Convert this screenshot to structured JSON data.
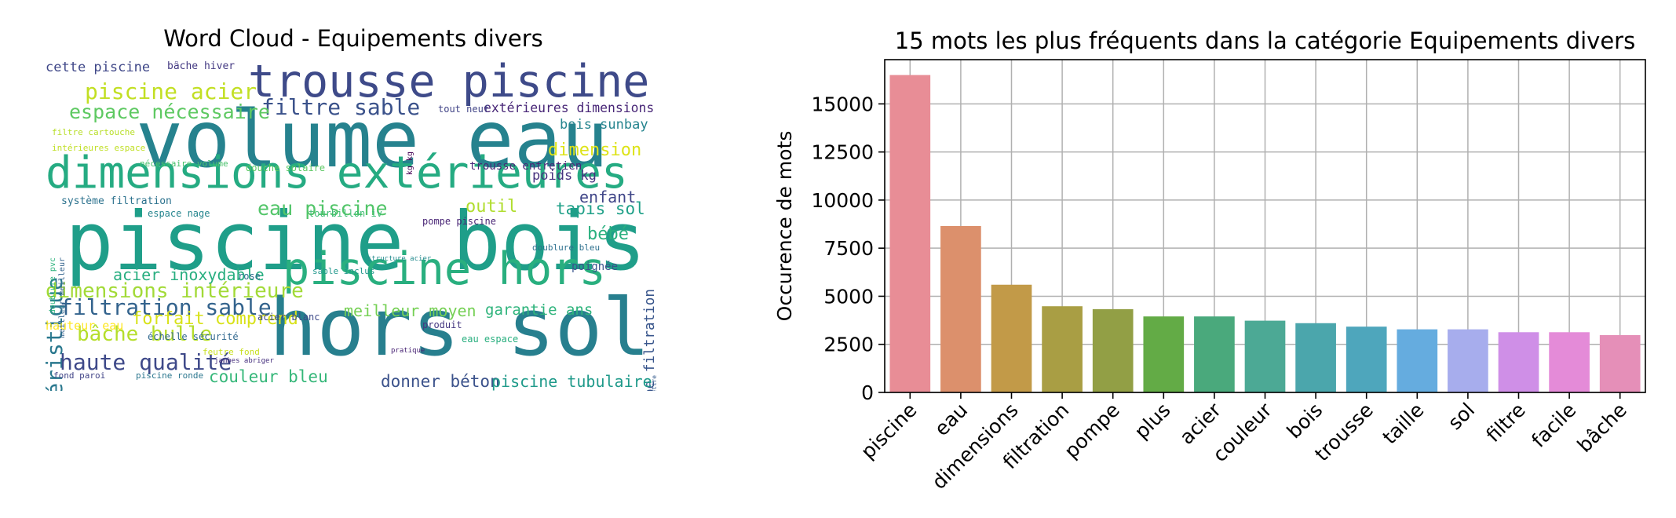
{
  "chart_data": [
    {
      "type": "wordcloud",
      "title": "Word Cloud - Equipements divers",
      "words": [
        {
          "text": "hors sol",
          "color": "#277f8e"
        },
        {
          "text": "piscine bois",
          "color": "#1f9e89"
        },
        {
          "text": "volume eau",
          "color": "#26828e"
        },
        {
          "text": "trousse piscine",
          "color": "#3e4a89"
        },
        {
          "text": "dimensions extérieures",
          "color": "#25ab82"
        },
        {
          "text": "piscine hors",
          "color": "#29af7f"
        },
        {
          "text": "filtre sable",
          "color": "#3b528b"
        },
        {
          "text": "caractéristique",
          "color": "#2a788e"
        },
        {
          "text": "dimensions intérieure",
          "color": "#a2da37"
        },
        {
          "text": "filtration sable",
          "color": "#33638d"
        },
        {
          "text": "haute qualité",
          "color": "#3e4989"
        },
        {
          "text": "bâche bulle",
          "color": "#b5de2b"
        },
        {
          "text": "pompe filtration",
          "color": "#39568c"
        },
        {
          "text": "piscine acier",
          "color": "#c2df23"
        },
        {
          "text": "espace nécessaire",
          "color": "#5ec962"
        },
        {
          "text": "eau piscine",
          "color": "#52c569"
        },
        {
          "text": "extérieures dimensions",
          "color": "#482677"
        },
        {
          "text": "acier inoxydable",
          "color": "#28ae80"
        },
        {
          "text": "forfait comprend",
          "color": "#d8e219"
        },
        {
          "text": "meilleur moyen",
          "color": "#75d054"
        },
        {
          "text": "garantie ans",
          "color": "#2fb47c"
        },
        {
          "text": "donner béton",
          "color": "#3b528b"
        },
        {
          "text": "piscine tubulaire",
          "color": "#1f9a8a"
        },
        {
          "text": "couleur bleu",
          "color": "#35b779"
        },
        {
          "text": "tapis sol",
          "color": "#1fa088"
        },
        {
          "text": "bébé",
          "color": "#2ab07f"
        },
        {
          "text": "enfant",
          "color": "#404688"
        },
        {
          "text": "outil",
          "color": "#b0dd2f"
        },
        {
          "text": "dimension",
          "color": "#dde318"
        },
        {
          "text": "bois sunbay",
          "color": "#25848e"
        },
        {
          "text": "poids kg",
          "color": "#46337f"
        },
        {
          "text": "cette piscine",
          "color": "#3f4788"
        },
        {
          "text": "longueur largeur",
          "color": "#dde318"
        },
        {
          "text": "hauteur eau",
          "color": "#fde725"
        },
        {
          "text": "trousse entretien",
          "color": "#482878"
        },
        {
          "text": "système filtration",
          "color": "#2c728e"
        },
        {
          "text": "poignée",
          "color": "#3a548c"
        },
        {
          "text": "bâche hiver",
          "color": "#443a83"
        },
        {
          "text": "douche solaire",
          "color": "#5cc863"
        },
        {
          "text": "tout neuf",
          "color": "#414487"
        },
        {
          "text": "espace nage",
          "color": "#25858e"
        },
        {
          "text": "pompe piscine",
          "color": "#482475"
        },
        {
          "text": "tourbillon iv",
          "color": "#3dbc74"
        },
        {
          "text": "intérieures espace",
          "color": "#c0df25"
        },
        {
          "text": "filtre cartouche",
          "color": "#b8de29"
        },
        {
          "text": "nécessaire volume",
          "color": "#4ac16d"
        },
        {
          "text": "doublure bleu",
          "color": "#2d708e"
        },
        {
          "text": "sable inclus",
          "color": "#1f978b"
        },
        {
          "text": "rose",
          "color": "#2e6e8e"
        },
        {
          "text": "acier blanc",
          "color": "#3e4a89"
        },
        {
          "text": "échelle sécurité",
          "color": "#31688e"
        },
        {
          "text": "produit",
          "color": "#453781"
        },
        {
          "text": "eau espace",
          "color": "#29af7f"
        },
        {
          "text": "fond paroi",
          "color": "#414487"
        },
        {
          "text": "piscine ronde",
          "color": "#2a768e"
        },
        {
          "text": "feutre fond",
          "color": "#c8e020"
        },
        {
          "text": "kg kg",
          "color": "#440154"
        },
        {
          "text": "doublure pvc",
          "color": "#2db27d"
        },
        {
          "text": "meilleur meilleur",
          "color": "#33638d"
        },
        {
          "text": "plat permettre",
          "color": "#365c8d"
        },
        {
          "text": "structure acier",
          "color": "#238a8d"
        },
        {
          "text": "jambes abriger",
          "color": "#46307e"
        },
        {
          "text": "pratique",
          "color": "#482475"
        }
      ]
    },
    {
      "type": "bar",
      "title": "15 mots les plus fréquents dans la catégorie Equipements divers",
      "xlabel": "",
      "ylabel": "Occurence de mots",
      "categories": [
        "piscine",
        "eau",
        "dimensions",
        "filtration",
        "pompe",
        "plus",
        "acier",
        "couleur",
        "bois",
        "trousse",
        "taille",
        "sol",
        "filtre",
        "facile",
        "bâche"
      ],
      "values": [
        16500,
        8650,
        5600,
        4480,
        4330,
        3950,
        3950,
        3730,
        3600,
        3420,
        3280,
        3280,
        3130,
        3130,
        2980
      ],
      "colors": [
        "#e88d96",
        "#dc906c",
        "#c29a48",
        "#a99e44",
        "#929f45",
        "#63ab46",
        "#4aa97c",
        "#4ca995",
        "#4ba6ac",
        "#4ea6bc",
        "#65acdf",
        "#a7aded",
        "#cf8fe7",
        "#e48bd8",
        "#e58fb8"
      ],
      "ylim": [
        0,
        17300
      ],
      "yticks": [
        0,
        2500,
        5000,
        7500,
        10000,
        12500,
        15000
      ],
      "grid": true
    }
  ]
}
